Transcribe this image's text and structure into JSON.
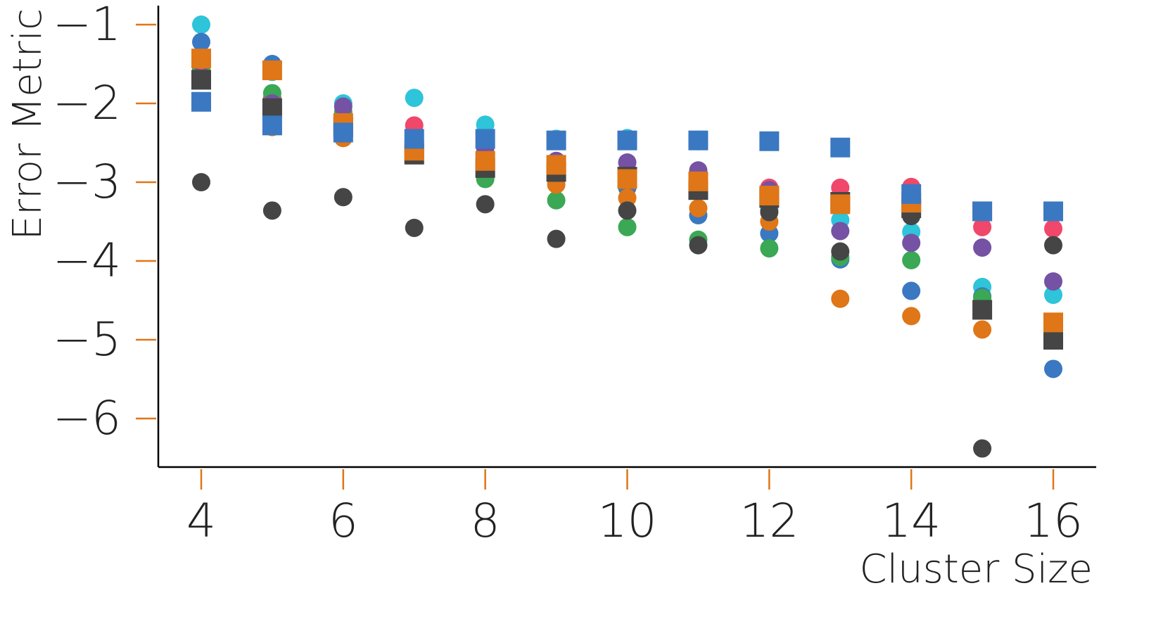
{
  "chart_data": {
    "type": "scatter",
    "title": "",
    "xlabel": "Cluster Size",
    "ylabel": "Error Metric",
    "xlim": [
      3.4,
      16.6
    ],
    "ylim": [
      -6.6,
      -0.75
    ],
    "xticks": [
      4,
      6,
      8,
      10,
      12,
      14,
      16
    ],
    "yticks": [
      -1,
      -2,
      -3,
      -4,
      -5,
      -6
    ],
    "ytick_labels": [
      "−1",
      "−2",
      "−3",
      "−4",
      "−5",
      "−6"
    ],
    "grid": false,
    "legend": "none",
    "series": [
      {
        "marker": "circle",
        "color": "#2ec4d9",
        "x": [
          4,
          5,
          6,
          7,
          8,
          9,
          10,
          11,
          12,
          13,
          14,
          15,
          16
        ],
        "y": [
          -1.0,
          -1.6,
          -2.0,
          -1.93,
          -2.27,
          -2.45,
          -2.44,
          -2.48,
          -3.35,
          -3.48,
          -3.63,
          -4.33,
          -4.43
        ]
      },
      {
        "marker": "circle",
        "color": "#3b78c2",
        "x": [
          4,
          5,
          6,
          7,
          8,
          9,
          10,
          11,
          12,
          13,
          14,
          15,
          16
        ],
        "y": [
          -1.22,
          -1.5,
          -2.3,
          -2.45,
          -2.5,
          -2.77,
          -3.07,
          -3.42,
          -3.65,
          -3.98,
          -4.38,
          -4.45,
          -5.37
        ]
      },
      {
        "marker": "circle",
        "color": "#f0476a",
        "x": [
          4,
          5,
          6,
          7,
          8,
          9,
          10,
          11,
          12,
          13,
          14,
          15,
          16
        ],
        "y": [
          -1.55,
          -1.93,
          -2.27,
          -2.28,
          -2.48,
          -2.84,
          -2.88,
          -3.0,
          -3.07,
          -3.07,
          -3.06,
          -3.57,
          -3.59
        ]
      },
      {
        "marker": "circle",
        "color": "#3aa855",
        "x": [
          4,
          5,
          6,
          7,
          8,
          9,
          10,
          11,
          12,
          13,
          14,
          15,
          16
        ],
        "y": [
          -1.58,
          -1.87,
          -2.11,
          -2.47,
          -2.96,
          -3.23,
          -3.57,
          -3.73,
          -3.84,
          -3.95,
          -3.99,
          -4.47,
          -4.78
        ]
      },
      {
        "marker": "circle",
        "color": "#7552a4",
        "x": [
          4,
          5,
          6,
          7,
          8,
          9,
          10,
          11,
          12,
          13,
          14,
          15,
          16
        ],
        "y": [
          -1.65,
          -2.0,
          -2.04,
          -2.5,
          -2.57,
          -2.73,
          -2.75,
          -2.85,
          -3.1,
          -3.62,
          -3.77,
          -3.83,
          -4.26
        ]
      },
      {
        "marker": "circle",
        "color": "#df7617",
        "x": [
          4,
          5,
          6,
          7,
          8,
          9,
          10,
          11,
          12,
          13,
          14,
          15,
          16
        ],
        "y": [
          -1.45,
          -2.3,
          -2.44,
          -2.65,
          -2.78,
          -3.03,
          -3.2,
          -3.33,
          -3.5,
          -4.48,
          -4.7,
          -4.87,
          -4.8
        ]
      },
      {
        "marker": "circle",
        "color": "#454545",
        "x": [
          4,
          5,
          6,
          7,
          8,
          9,
          10,
          11,
          12,
          13,
          14,
          15,
          16
        ],
        "y": [
          -3.0,
          -3.36,
          -3.19,
          -3.58,
          -3.28,
          -3.72,
          -3.36,
          -3.8,
          -3.38,
          -3.88,
          -3.43,
          -6.38,
          -3.8
        ]
      },
      {
        "marker": "square",
        "color": "#454545",
        "x": [
          4,
          5,
          6,
          7,
          8,
          9,
          10,
          11,
          12,
          13,
          14,
          15,
          16
        ],
        "y": [
          -1.7,
          -2.06,
          -2.3,
          -2.65,
          -2.82,
          -2.87,
          -2.93,
          -3.1,
          -3.2,
          -3.25,
          -3.33,
          -4.62,
          -5.0
        ]
      },
      {
        "marker": "square",
        "color": "#df7617",
        "x": [
          4,
          5,
          6,
          7,
          8,
          9,
          10,
          11,
          12,
          13,
          14,
          15,
          16
        ],
        "y": [
          -1.43,
          -1.58,
          -2.25,
          -2.6,
          -2.73,
          -2.78,
          -2.96,
          -2.99,
          -3.17,
          -3.28,
          -3.26,
          -3.37,
          -4.78
        ]
      },
      {
        "marker": "square",
        "color": "#3b78c2",
        "x": [
          4,
          5,
          6,
          7,
          8,
          9,
          10,
          11,
          12,
          13,
          14,
          15,
          16
        ],
        "y": [
          -1.98,
          -2.28,
          -2.37,
          -2.45,
          -2.45,
          -2.47,
          -2.47,
          -2.47,
          -2.48,
          -2.56,
          -3.15,
          -3.37,
          -3.37
        ]
      }
    ]
  }
}
